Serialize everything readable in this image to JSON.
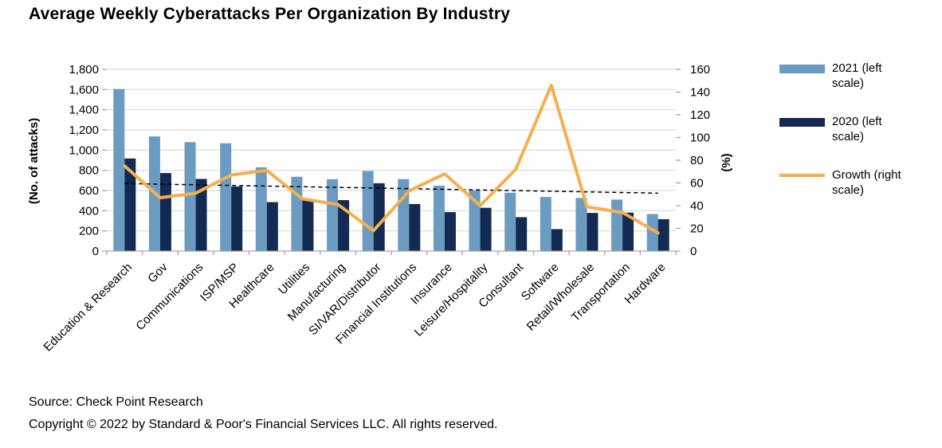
{
  "title": "Average Weekly Cyberattacks Per Organization By Industry",
  "source": "Source: Check Point Research",
  "copyright": "Copyright © 2022 by Standard & Poor's Financial Services LLC. All rights reserved.",
  "colors": {
    "bar_2021": "#6C9BC2",
    "bar_2020": "#132A52",
    "growth_line": "#F5AF4C",
    "gridline": "#D9D9D9",
    "axis": "#A6A6A6",
    "trendline": "#000000",
    "text": "#000000"
  },
  "legend": [
    {
      "label": "2021 (left scale)",
      "type": "bar",
      "color": "#6C9BC2"
    },
    {
      "label": "2020 (left scale)",
      "type": "bar",
      "color": "#132A52"
    },
    {
      "label": "Growth (right scale)",
      "type": "line",
      "color": "#F5AF4C"
    }
  ],
  "chart_data": {
    "type": "bar",
    "subtype": "grouped-bars-with-line",
    "title": "Average Weekly Cyberattacks Per Organization By Industry",
    "categories": [
      "Education & Research",
      "Gov",
      "Communications",
      "ISP/MSP",
      "Healthcare",
      "Utilities",
      "Manufacturing",
      "SI/VAR/Distributor",
      "Financial Institutions",
      "Insurance",
      "Leisure/Hospitality",
      "Consultant",
      "Software",
      "Retail/Wholesale",
      "Transportation",
      "Hardware"
    ],
    "series": [
      {
        "name": "2021 (left scale)",
        "type": "bar",
        "axis": "left",
        "color": "#6C9BC2",
        "values": [
          1605,
          1136,
          1079,
          1068,
          830,
          736,
          712,
          793,
          713,
          648,
          600,
          578,
          536,
          526,
          510,
          367
        ]
      },
      {
        "name": "2020 (left scale)",
        "type": "bar",
        "axis": "left",
        "color": "#132A52",
        "values": [
          917,
          773,
          715,
          640,
          485,
          504,
          505,
          672,
          466,
          386,
          429,
          336,
          218,
          378,
          381,
          316
        ]
      },
      {
        "name": "Growth (right scale)",
        "type": "line",
        "axis": "right",
        "color": "#F5AF4C",
        "values": [
          75,
          47,
          51,
          67,
          71,
          46,
          41,
          18,
          53,
          68,
          40,
          72,
          146,
          39,
          34,
          16
        ]
      }
    ],
    "trendline": {
      "of_series": "Growth (right scale)",
      "style": "dashed",
      "color": "#000000",
      "axis": "right",
      "start_pct": 59.5,
      "end_pct": 51
    },
    "left_axis": {
      "label": "(No. of attacks)",
      "min": 0,
      "max": 1800,
      "step": 200,
      "tick_labels": [
        "0",
        "200",
        "400",
        "600",
        "800",
        "1,000",
        "1,200",
        "1,400",
        "1,600",
        "1,800"
      ]
    },
    "right_axis": {
      "label": "(%)",
      "min": 0,
      "max": 160,
      "step": 20,
      "tick_labels": [
        "0",
        "20",
        "40",
        "60",
        "80",
        "100",
        "120",
        "140",
        "160"
      ]
    },
    "grid": true,
    "legend_position": "right",
    "category_label_rotation_deg": 45
  }
}
